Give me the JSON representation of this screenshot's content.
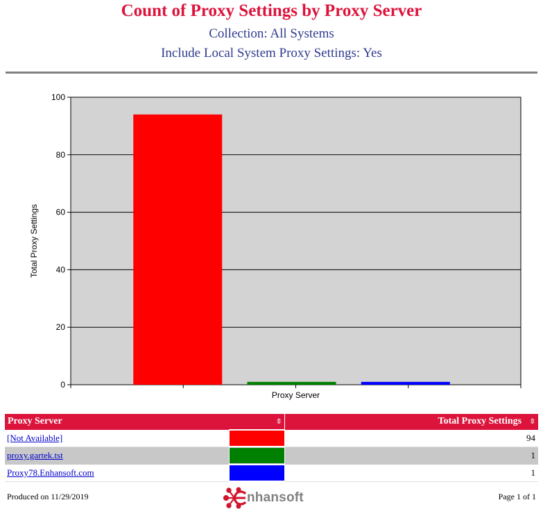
{
  "header": {
    "title": "Count of Proxy Settings by Proxy Server",
    "collection": "Collection: All Systems",
    "include_local": "Include Local System Proxy Settings: Yes"
  },
  "chart_data": {
    "type": "bar",
    "categories": [
      "[Not Available]",
      "proxy.gartek.tst",
      "Proxy78.Enhansoft.com"
    ],
    "values": [
      94,
      1,
      1
    ],
    "colors": [
      "#ff0000",
      "#008000",
      "#0000ff"
    ],
    "xlabel": "Proxy Server",
    "ylabel": "Total Proxy Settings",
    "ylim": [
      0,
      100
    ],
    "yticks": [
      0,
      20,
      40,
      60,
      80,
      100
    ],
    "grid": true,
    "plot_background": "#d3d3d3"
  },
  "table": {
    "col1": "Proxy Server",
    "col2": "Total Proxy Settings",
    "rows": [
      {
        "name": "[Not Available]",
        "value": "94",
        "color": "#ff0000"
      },
      {
        "name": "proxy.gartek.tst",
        "value": "1",
        "color": "#008000"
      },
      {
        "name": "Proxy78.Enhansoft.com",
        "value": "1",
        "color": "#0000ff"
      }
    ]
  },
  "footer": {
    "produced": "Produced on 11/29/2019",
    "page": "Page 1 of 1",
    "logo_text": "nhansoft",
    "logo_icon": "enhansoft-molecule-icon"
  }
}
